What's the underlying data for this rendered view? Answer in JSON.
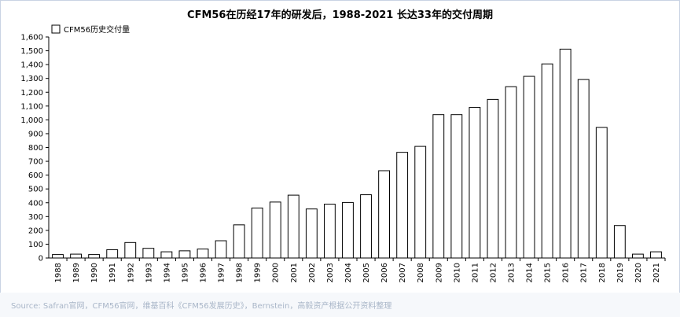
{
  "chart_data": {
    "type": "bar",
    "title": "CFM56在历经17年的研发后，1988-2021 长达33年的交付周期",
    "legend": "CFM56历史交付量",
    "legend_position": "top-left",
    "ylim": [
      0,
      1600
    ],
    "y_ticks": [
      "0",
      "100",
      "200",
      "300",
      "400",
      "500",
      "600",
      "700",
      "800",
      "900",
      "1,000",
      "1,100",
      "1,200",
      "1,300",
      "1,400",
      "1,500",
      "1,600"
    ],
    "categories": [
      "1988",
      "1989",
      "1990",
      "1991",
      "1992",
      "1993",
      "1994",
      "1995",
      "1996",
      "1997",
      "1998",
      "1999",
      "2000",
      "2001",
      "2002",
      "2003",
      "2004",
      "2005",
      "2006",
      "2007",
      "2008",
      "2009",
      "2010",
      "2011",
      "2012",
      "2013",
      "2014",
      "2015",
      "2016",
      "2017",
      "2018",
      "2019",
      "2020",
      "2021"
    ],
    "values": [
      25,
      28,
      25,
      60,
      112,
      70,
      45,
      52,
      65,
      125,
      240,
      362,
      405,
      455,
      355,
      390,
      402,
      458,
      632,
      765,
      808,
      1038,
      1038,
      1090,
      1148,
      1240,
      1315,
      1405,
      1512,
      1292,
      945,
      235,
      28,
      45
    ],
    "grid": false,
    "bar_fill": "#ffffff",
    "bar_stroke": "#000000"
  },
  "source": "Source: Safran官网，CFM56官网，维基百科《CFM56发展历史》，Bernstein，高毅资产根据公开资料整理"
}
